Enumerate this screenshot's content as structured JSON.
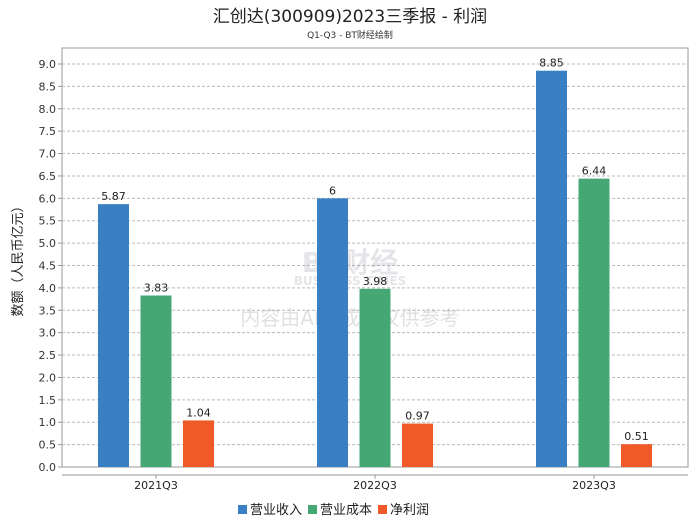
{
  "chart_data": {
    "type": "bar",
    "title": "汇创达(300909)2023三季报 - 利润",
    "subtitle": "Q1-Q3 - BT财经绘制",
    "ylabel": "数额（人民币亿元）",
    "xlabel": "",
    "ylim": [
      0,
      9.0
    ],
    "ytick_step": 0.5,
    "grid": true,
    "legend_placement": "bottom",
    "categories": [
      "2021Q3",
      "2022Q3",
      "2023Q3"
    ],
    "series": [
      {
        "name": "营业收入",
        "color": "#3a7fc1",
        "values": [
          5.87,
          6,
          8.85
        ],
        "labels": [
          "5.87",
          "6",
          "8.85"
        ]
      },
      {
        "name": "营业成本",
        "color": "#45a874",
        "values": [
          3.83,
          3.98,
          6.44
        ],
        "labels": [
          "3.83",
          "3.98",
          "6.44"
        ]
      },
      {
        "name": "净利润",
        "color": "#f05a28",
        "values": [
          1.04,
          0.97,
          0.51
        ],
        "labels": [
          "1.04",
          "0.97",
          "0.51"
        ]
      }
    ],
    "watermark": {
      "brand": "BT财经",
      "sub": "BUSINESS TIMES",
      "note": "内容由AI生成，仅供参考"
    }
  }
}
